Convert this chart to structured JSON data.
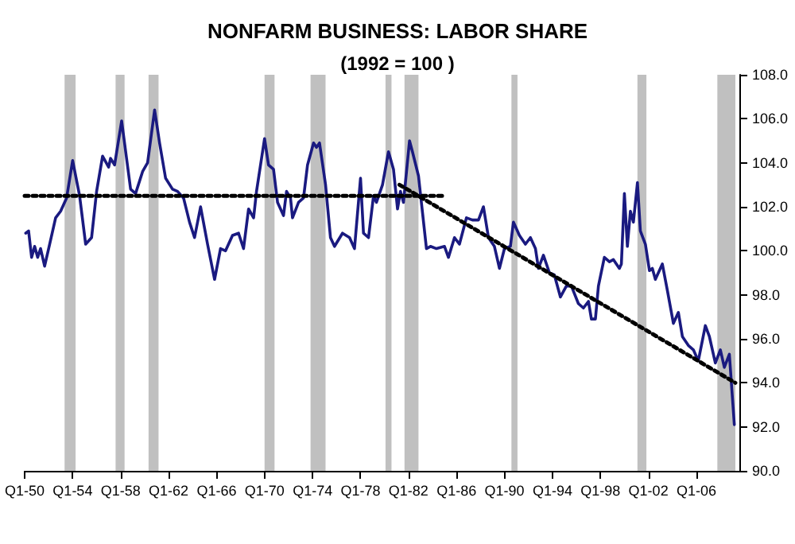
{
  "chart_data": {
    "type": "line",
    "title": "NONFARM BUSINESS: LABOR SHARE",
    "subtitle": "(1992 = 100 )",
    "xlim": [
      "1950-01",
      "2009-08"
    ],
    "ylim": [
      90,
      108
    ],
    "xticks": [
      {
        "value": "1950-01",
        "label": "Q1-50"
      },
      {
        "value": "1954-01",
        "label": "Q1-54"
      },
      {
        "value": "1958-01",
        "label": "Q1-58"
      },
      {
        "value": "1962-01",
        "label": "Q1-62"
      },
      {
        "value": "1966-01",
        "label": "Q1-66"
      },
      {
        "value": "1970-01",
        "label": "Q1-70"
      },
      {
        "value": "1974-01",
        "label": "Q1-74"
      },
      {
        "value": "1978-01",
        "label": "Q1-78"
      },
      {
        "value": "1982-01",
        "label": "Q1-82"
      },
      {
        "value": "1986-01",
        "label": "Q1-86"
      },
      {
        "value": "1990-01",
        "label": "Q1-90"
      },
      {
        "value": "1994-01",
        "label": "Q1-94"
      },
      {
        "value": "1998-01",
        "label": "Q1-98"
      },
      {
        "value": "2002-01",
        "label": "Q1-02"
      },
      {
        "value": "2006-01",
        "label": "Q1-06"
      }
    ],
    "yticks": [
      {
        "value": 90,
        "label": "90.0"
      },
      {
        "value": 92,
        "label": "92.0"
      },
      {
        "value": 94,
        "label": "94.0"
      },
      {
        "value": 96,
        "label": "96.0"
      },
      {
        "value": 98,
        "label": "98.0"
      },
      {
        "value": 100,
        "label": "100.0"
      },
      {
        "value": 102,
        "label": "102.0"
      },
      {
        "value": 104,
        "label": "104.0"
      },
      {
        "value": 106,
        "label": "106.0"
      },
      {
        "value": 108,
        "label": "108.0"
      }
    ],
    "grid": false,
    "marker": "none",
    "series": [
      {
        "color": "#1a1a80",
        "line_style": "solid",
        "x": [
          "1950-02",
          "1950-05",
          "1950-08",
          "1950-11",
          "1951-02",
          "1951-05",
          "1951-09",
          "1952-02",
          "1952-08",
          "1953-01",
          "1953-07",
          "1954-01",
          "1954-08",
          "1955-02",
          "1955-08",
          "1956-01",
          "1956-07",
          "1957-01",
          "1957-03",
          "1957-07",
          "1958-02",
          "1958-07",
          "1958-11",
          "1959-04",
          "1959-11",
          "1960-04",
          "1960-11",
          "1961-04",
          "1961-10",
          "1962-05",
          "1962-10",
          "1963-04",
          "1963-10",
          "1964-03",
          "1964-09",
          "1965-04",
          "1965-11",
          "1966-05",
          "1966-10",
          "1967-05",
          "1967-11",
          "1968-04",
          "1968-09",
          "1969-02",
          "1969-05",
          "1970-01",
          "1970-05",
          "1970-10",
          "1971-02",
          "1971-08",
          "1971-11",
          "1972-03",
          "1972-05",
          "1972-11",
          "1973-04",
          "1973-08",
          "1974-02",
          "1974-05",
          "1974-08",
          "1975-02",
          "1975-07",
          "1975-11",
          "1976-07",
          "1977-02",
          "1977-07",
          "1978-01",
          "1978-04",
          "1978-09",
          "1979-02",
          "1979-05",
          "1979-11",
          "1980-05",
          "1980-10",
          "1981-02",
          "1981-05",
          "1981-08",
          "1982-02",
          "1982-05",
          "1982-11",
          "1983-07",
          "1983-11",
          "1984-05",
          "1985-01",
          "1985-05",
          "1985-11",
          "1986-04",
          "1986-11",
          "1987-05",
          "1987-11",
          "1988-04",
          "1988-09",
          "1989-03",
          "1989-08",
          "1990-01",
          "1990-07",
          "1990-10",
          "1991-04",
          "1991-10",
          "1992-03",
          "1992-08",
          "1992-11",
          "1993-04",
          "1993-10",
          "1994-03",
          "1994-09",
          "1995-03",
          "1995-08",
          "1996-03",
          "1996-08",
          "1997-01",
          "1997-04",
          "1997-08",
          "1997-11",
          "1998-05",
          "1998-10",
          "1999-02",
          "1999-08",
          "1999-10",
          "2000-01",
          "2000-04",
          "2000-07",
          "2000-10",
          "2001-02",
          "2001-05",
          "2001-10",
          "2002-02",
          "2002-05",
          "2002-08",
          "2003-03",
          "2003-08",
          "2004-02",
          "2004-07",
          "2004-11",
          "2005-05",
          "2005-10",
          "2006-03",
          "2006-10",
          "2007-02",
          "2007-08",
          "2008-01",
          "2008-05",
          "2008-10",
          "2009-03"
        ],
        "values": [
          100.8,
          100.9,
          99.7,
          100.2,
          99.7,
          100.1,
          99.3,
          100.3,
          101.5,
          101.8,
          102.4,
          104.1,
          102.5,
          100.3,
          100.6,
          102.7,
          104.3,
          103.8,
          104.2,
          103.9,
          105.9,
          104.2,
          102.8,
          102.6,
          103.6,
          104.0,
          106.4,
          104.9,
          103.3,
          102.8,
          102.7,
          102.4,
          101.3,
          100.6,
          102.0,
          100.3,
          98.7,
          100.1,
          100.0,
          100.7,
          100.8,
          100.1,
          101.9,
          101.5,
          102.7,
          105.1,
          103.9,
          103.7,
          102.2,
          101.6,
          102.7,
          102.4,
          101.5,
          102.2,
          102.4,
          103.9,
          104.9,
          104.7,
          104.9,
          103.0,
          100.6,
          100.2,
          100.8,
          100.6,
          100.1,
          103.3,
          100.8,
          100.6,
          102.5,
          102.2,
          103.0,
          104.5,
          103.7,
          101.9,
          102.7,
          102.2,
          105.0,
          104.5,
          103.4,
          100.1,
          100.2,
          100.1,
          100.2,
          99.7,
          100.6,
          100.3,
          101.5,
          101.4,
          101.4,
          102.0,
          100.6,
          100.2,
          99.2,
          100.1,
          100.2,
          101.3,
          100.7,
          100.3,
          100.6,
          100.1,
          99.2,
          99.8,
          99.0,
          98.9,
          97.9,
          98.4,
          98.4,
          97.6,
          97.4,
          97.7,
          96.9,
          96.9,
          98.4,
          99.7,
          99.5,
          99.6,
          99.2,
          99.4,
          102.6,
          100.2,
          101.8,
          101.3,
          103.1,
          100.9,
          100.3,
          99.1,
          99.2,
          98.7,
          99.4,
          98.2,
          96.7,
          97.2,
          96.1,
          95.7,
          95.5,
          95.0,
          96.6,
          96.1,
          94.9,
          95.5,
          94.7,
          95.3,
          92.1
        ]
      },
      {
        "color": "#000000",
        "line_style": "dotted",
        "x": [
          "1950-01",
          "1985-01"
        ],
        "values": [
          102.5,
          102.5
        ]
      },
      {
        "color": "#000000",
        "line_style": "dotted",
        "x": [
          "1981-04",
          "2009-04"
        ],
        "values": [
          103.0,
          94.0
        ]
      }
    ],
    "bands": [
      {
        "axis": "x",
        "from": "1953-05",
        "to": "1954-04",
        "color": "#c0c0c0"
      },
      {
        "axis": "x",
        "from": "1957-08",
        "to": "1958-05",
        "color": "#c0c0c0"
      },
      {
        "axis": "x",
        "from": "1960-05",
        "to": "1961-03",
        "color": "#c0c0c0"
      },
      {
        "axis": "x",
        "from": "1970-01",
        "to": "1970-11",
        "color": "#c0c0c0"
      },
      {
        "axis": "x",
        "from": "1973-11",
        "to": "1975-02",
        "color": "#c0c0c0"
      },
      {
        "axis": "x",
        "from": "1980-02",
        "to": "1980-08",
        "color": "#c0c0c0"
      },
      {
        "axis": "x",
        "from": "1981-09",
        "to": "1982-11",
        "color": "#c0c0c0"
      },
      {
        "axis": "x",
        "from": "1990-08",
        "to": "1991-02",
        "color": "#c0c0c0"
      },
      {
        "axis": "x",
        "from": "2001-02",
        "to": "2001-11",
        "color": "#c0c0c0"
      },
      {
        "axis": "x",
        "from": "2007-10",
        "to": "2009-04",
        "color": "#c0c0c0"
      }
    ]
  }
}
